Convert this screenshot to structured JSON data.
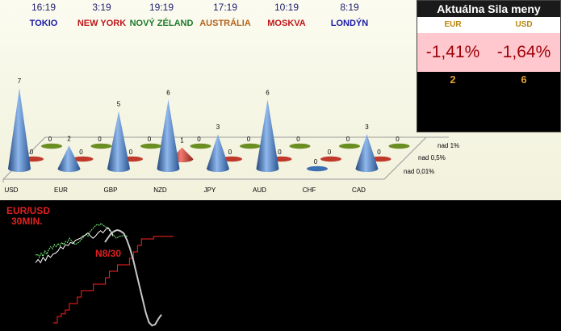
{
  "clocks": [
    {
      "time": "16:19",
      "city": "TOKIO",
      "color": "#1a1aa8"
    },
    {
      "time": "3:19",
      "city": "NEW YORK",
      "color": "#c0171b"
    },
    {
      "time": "19:19",
      "city": "NOVÝ ZÉLAND",
      "color": "#1d7a2a"
    },
    {
      "time": "17:19",
      "city": "AUSTRÁLIA",
      "color": "#b5651d"
    },
    {
      "time": "10:19",
      "city": "MOSKVA",
      "color": "#c0171b"
    },
    {
      "time": "8:19",
      "city": "LONDÝN",
      "color": "#1a1aa8"
    }
  ],
  "strength_panel": {
    "title": "Aktuálna Sila meny",
    "currencies": [
      "EUR",
      "USD"
    ],
    "percent": [
      "-1,41%",
      "-1,64%"
    ],
    "counts": [
      "2",
      "6"
    ]
  },
  "chart_data": [
    {
      "type": "bar",
      "categories": [
        "USD",
        "EUR",
        "GBP",
        "NZD",
        "JPY",
        "AUD",
        "CHF",
        "CAD"
      ],
      "series": [
        {
          "name": "nad 0,01%",
          "values": [
            7,
            2,
            5,
            6,
            3,
            6,
            0,
            3
          ],
          "color": "#3d6fb4"
        },
        {
          "name": "nad 0,5%",
          "values": [
            0,
            0,
            0,
            1,
            0,
            0,
            0,
            0
          ],
          "color": "#c0392b"
        },
        {
          "name": "nad 1%",
          "values": [
            0,
            0,
            0,
            0,
            0,
            0,
            0,
            0
          ],
          "color": "#6b8e23"
        }
      ],
      "legend_position": "right"
    },
    {
      "type": "line",
      "title": "EUR/USD",
      "subtitle": "30MIN.",
      "annotation": "N8/30",
      "series": [
        {
          "values": [
            0.62,
            0.63,
            0.6,
            0.64,
            0.61,
            0.66,
            0.63,
            0.67,
            0.7,
            0.68,
            0.72,
            0.7,
            0.73,
            0.71,
            0.74,
            0.72,
            0.75,
            0.74,
            0.78,
            0.76,
            0.74,
            0.72,
            0.73,
            0.74,
            0.76,
            0.78,
            0.8,
            0.82,
            0.8,
            0.84,
            0.86,
            0.88,
            0.9,
            0.91,
            0.9,
            0.92,
            0.9,
            0.89,
            0.88,
            0.86,
            0.84,
            0.82,
            0.8,
            0.78,
            0.79,
            0.8,
            0.8,
            0.81,
            0.8,
            0.8
          ],
          "color": "#7fff7f"
        },
        {
          "values": [
            0.55,
            0.58,
            0.55,
            0.6,
            0.57,
            0.62,
            0.6,
            0.63,
            0.64,
            0.66,
            0.7,
            0.68,
            0.72,
            0.71,
            0.74,
            0.73,
            0.76,
            0.77,
            0.78,
            0.8,
            0.81,
            0.83,
            0.8,
            0.78,
            0.8,
            0.83,
            0.85,
            0.83,
            0.86,
            0.88,
            0.85,
            0.8
          ],
          "color": "#ffffff"
        },
        {
          "values": [
            0.05,
            0.1,
            0.12,
            0.15,
            0.2,
            0.2,
            0.25,
            0.3,
            0.3,
            0.3,
            0.35,
            0.35,
            0.35,
            0.4,
            0.45,
            0.45,
            0.5,
            0.5,
            0.5,
            0.55,
            0.6,
            0.65,
            0.7,
            0.7,
            0.7,
            0.72,
            0.72,
            0.72,
            0.72,
            0.72,
            0.72
          ],
          "color": "#ff2222"
        },
        {
          "values": [
            0.78,
            0.82,
            0.86,
            0.88,
            0.89,
            0.88,
            0.86,
            0.8,
            0.72,
            0.62,
            0.5,
            0.38,
            0.26,
            0.14,
            0.05,
            0.02,
            0.03,
            0.08,
            0.12
          ],
          "color": "#c8c8c8"
        }
      ]
    }
  ]
}
